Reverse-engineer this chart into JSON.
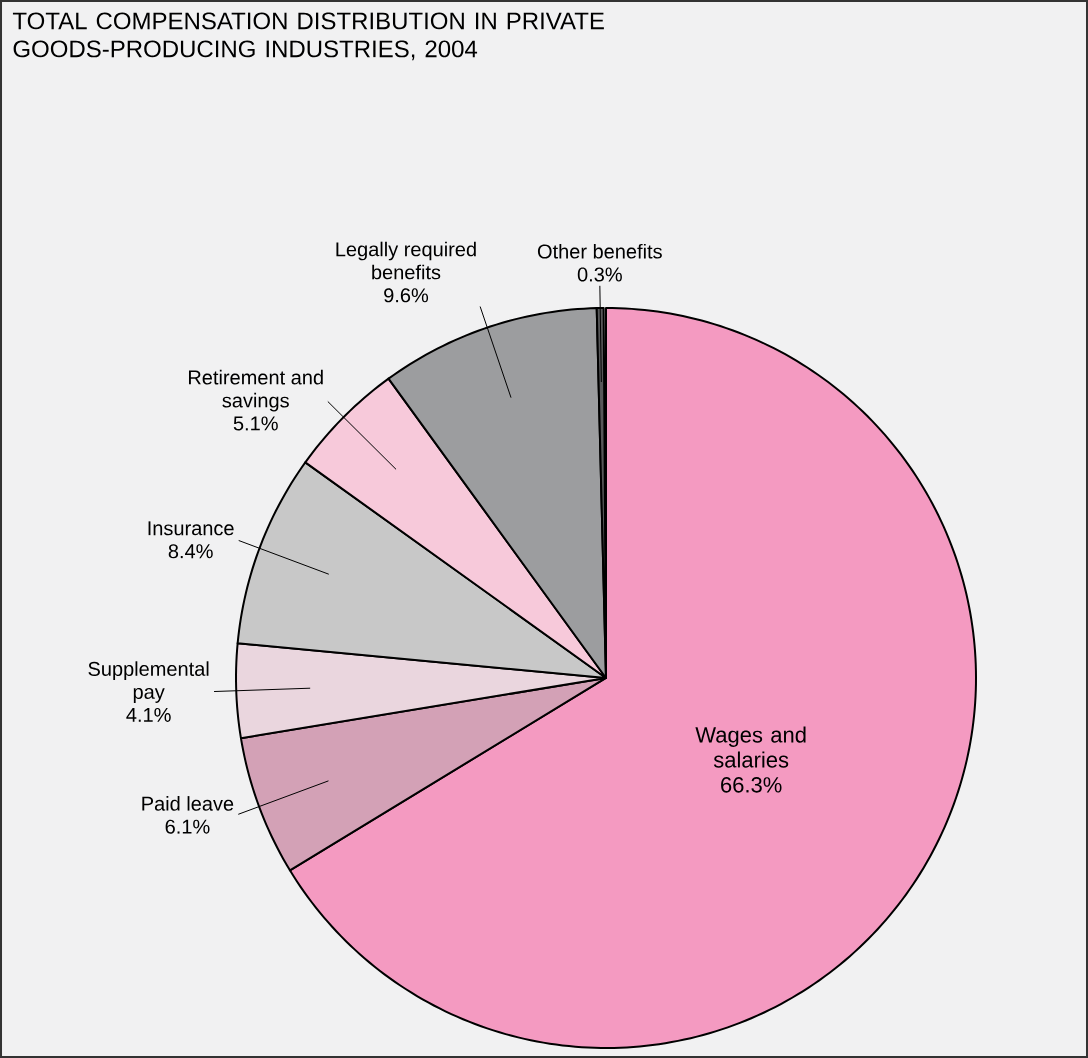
{
  "chart_data": {
    "type": "pie",
    "title": "TOTAL COMPENSATION DISTRIBUTION IN PRIVATE GOODS-PRODUCING INDUSTRIES, 2004",
    "categories": [
      "Wages and salaries",
      "Paid leave",
      "Supplemental pay",
      "Insurance",
      "Retirement and savings",
      "Legally required benefits",
      "Other benefits"
    ],
    "values": [
      66.3,
      6.1,
      4.1,
      8.4,
      5.1,
      9.6,
      0.3
    ],
    "value_labels": [
      "66.3%",
      "6.1%",
      "4.1%",
      "8.4%",
      "5.1%",
      "9.6%",
      "0.3%"
    ],
    "colors": [
      "#f49ac1",
      "#d3a1b6",
      "#ead6de",
      "#c8c8c8",
      "#f7c9da",
      "#9c9d9f",
      "#58585a"
    ]
  }
}
